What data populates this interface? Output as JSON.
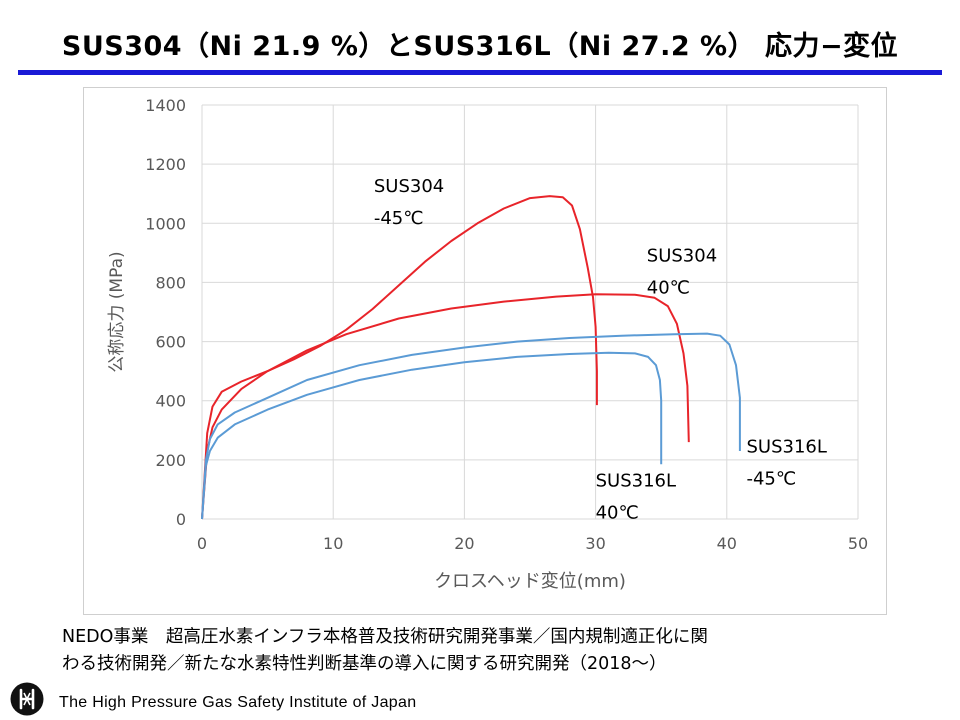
{
  "slide": {
    "title": "SUS304（Ni 21.9 %）とSUS316L（Ni 27.2 %） 応力−変位",
    "caption_line1": "NEDO事業　超高圧水素インフラ本格普及技術研究開発事業／国内規制適正化に関",
    "caption_line2": "わる技術開発／新たな水素特性判断基準の導入に関する研究開発（2018〜）",
    "footer": "The High Pressure Gas Safety Institute of Japan",
    "logo_icon": "hpi-logo-icon"
  },
  "chart_data": {
    "type": "line",
    "title": "",
    "xlabel": "クロスヘッド変位(mm)",
    "ylabel": "公称応力 (MPa)",
    "xlim": [
      0,
      50
    ],
    "ylim": [
      0,
      1400
    ],
    "x_ticks": [
      "0",
      "10",
      "20",
      "30",
      "40",
      "50"
    ],
    "y_ticks": [
      "0",
      "200",
      "400",
      "600",
      "800",
      "1000",
      "1200",
      "1400"
    ],
    "grid": true,
    "legend": "none",
    "colors": {
      "SUS304": "#e8242a",
      "SUS316L": "#5b9bd5",
      "grid": "#d9d9d9",
      "axis_text": "#595959"
    },
    "series": [
      {
        "name": "SUS304 -45℃",
        "label_lines": [
          "SUS304",
          "-45℃"
        ],
        "color": "#e8242a",
        "points": [
          [
            0,
            0
          ],
          [
            0.4,
            290
          ],
          [
            0.8,
            380
          ],
          [
            1.5,
            430
          ],
          [
            3,
            465
          ],
          [
            5,
            500
          ],
          [
            7,
            540
          ],
          [
            9,
            585
          ],
          [
            11,
            640
          ],
          [
            13,
            710
          ],
          [
            15,
            790
          ],
          [
            17,
            870
          ],
          [
            19,
            940
          ],
          [
            21,
            1000
          ],
          [
            23,
            1050
          ],
          [
            25,
            1085
          ],
          [
            26.5,
            1092
          ],
          [
            27.5,
            1088
          ],
          [
            28.2,
            1060
          ],
          [
            28.8,
            980
          ],
          [
            29.4,
            850
          ],
          [
            29.8,
            750
          ],
          [
            30,
            650
          ],
          [
            30.1,
            500
          ],
          [
            30.1,
            385
          ]
        ]
      },
      {
        "name": "SUS304 40℃",
        "label_lines": [
          "SUS304",
          "40℃"
        ],
        "color": "#e8242a",
        "points": [
          [
            0,
            0
          ],
          [
            0.4,
            230
          ],
          [
            0.8,
            310
          ],
          [
            1.5,
            370
          ],
          [
            3,
            440
          ],
          [
            5,
            500
          ],
          [
            8,
            570
          ],
          [
            11,
            625
          ],
          [
            15,
            678
          ],
          [
            19,
            712
          ],
          [
            23,
            735
          ],
          [
            27,
            752
          ],
          [
            30,
            760
          ],
          [
            33,
            758
          ],
          [
            34.5,
            748
          ],
          [
            35.5,
            720
          ],
          [
            36.2,
            660
          ],
          [
            36.7,
            560
          ],
          [
            37,
            450
          ],
          [
            37.1,
            260
          ]
        ]
      },
      {
        "name": "SUS316L -45℃",
        "label_lines": [
          "SUS316L",
          "-45℃"
        ],
        "color": "#5b9bd5",
        "points": [
          [
            0,
            0
          ],
          [
            0.3,
            200
          ],
          [
            0.6,
            270
          ],
          [
            1.2,
            320
          ],
          [
            2.5,
            360
          ],
          [
            5,
            410
          ],
          [
            8,
            470
          ],
          [
            12,
            520
          ],
          [
            16,
            555
          ],
          [
            20,
            580
          ],
          [
            24,
            600
          ],
          [
            28,
            612
          ],
          [
            32,
            620
          ],
          [
            36,
            625
          ],
          [
            38.5,
            627
          ],
          [
            39.5,
            620
          ],
          [
            40.2,
            590
          ],
          [
            40.7,
            520
          ],
          [
            41,
            410
          ],
          [
            41,
            230
          ]
        ]
      },
      {
        "name": "SUS316L 40℃",
        "label_lines": [
          "SUS316L",
          "40℃"
        ],
        "color": "#5b9bd5",
        "points": [
          [
            0,
            0
          ],
          [
            0.3,
            180
          ],
          [
            0.6,
            230
          ],
          [
            1.2,
            275
          ],
          [
            2.5,
            320
          ],
          [
            5,
            370
          ],
          [
            8,
            420
          ],
          [
            12,
            470
          ],
          [
            16,
            505
          ],
          [
            20,
            530
          ],
          [
            24,
            548
          ],
          [
            28,
            558
          ],
          [
            31,
            562
          ],
          [
            33,
            560
          ],
          [
            34,
            548
          ],
          [
            34.6,
            520
          ],
          [
            34.9,
            470
          ],
          [
            35,
            400
          ],
          [
            35,
            185
          ]
        ]
      }
    ],
    "annotations": [
      {
        "series": "SUS304 -45℃",
        "x": 13.1,
        "y": 1105
      },
      {
        "series": "SUS304 40℃",
        "x": 33.9,
        "y": 870
      },
      {
        "series": "SUS316L -45℃",
        "x": 41.5,
        "y": 225
      },
      {
        "series": "SUS316L 40℃",
        "x": 30,
        "y": 110
      }
    ]
  }
}
